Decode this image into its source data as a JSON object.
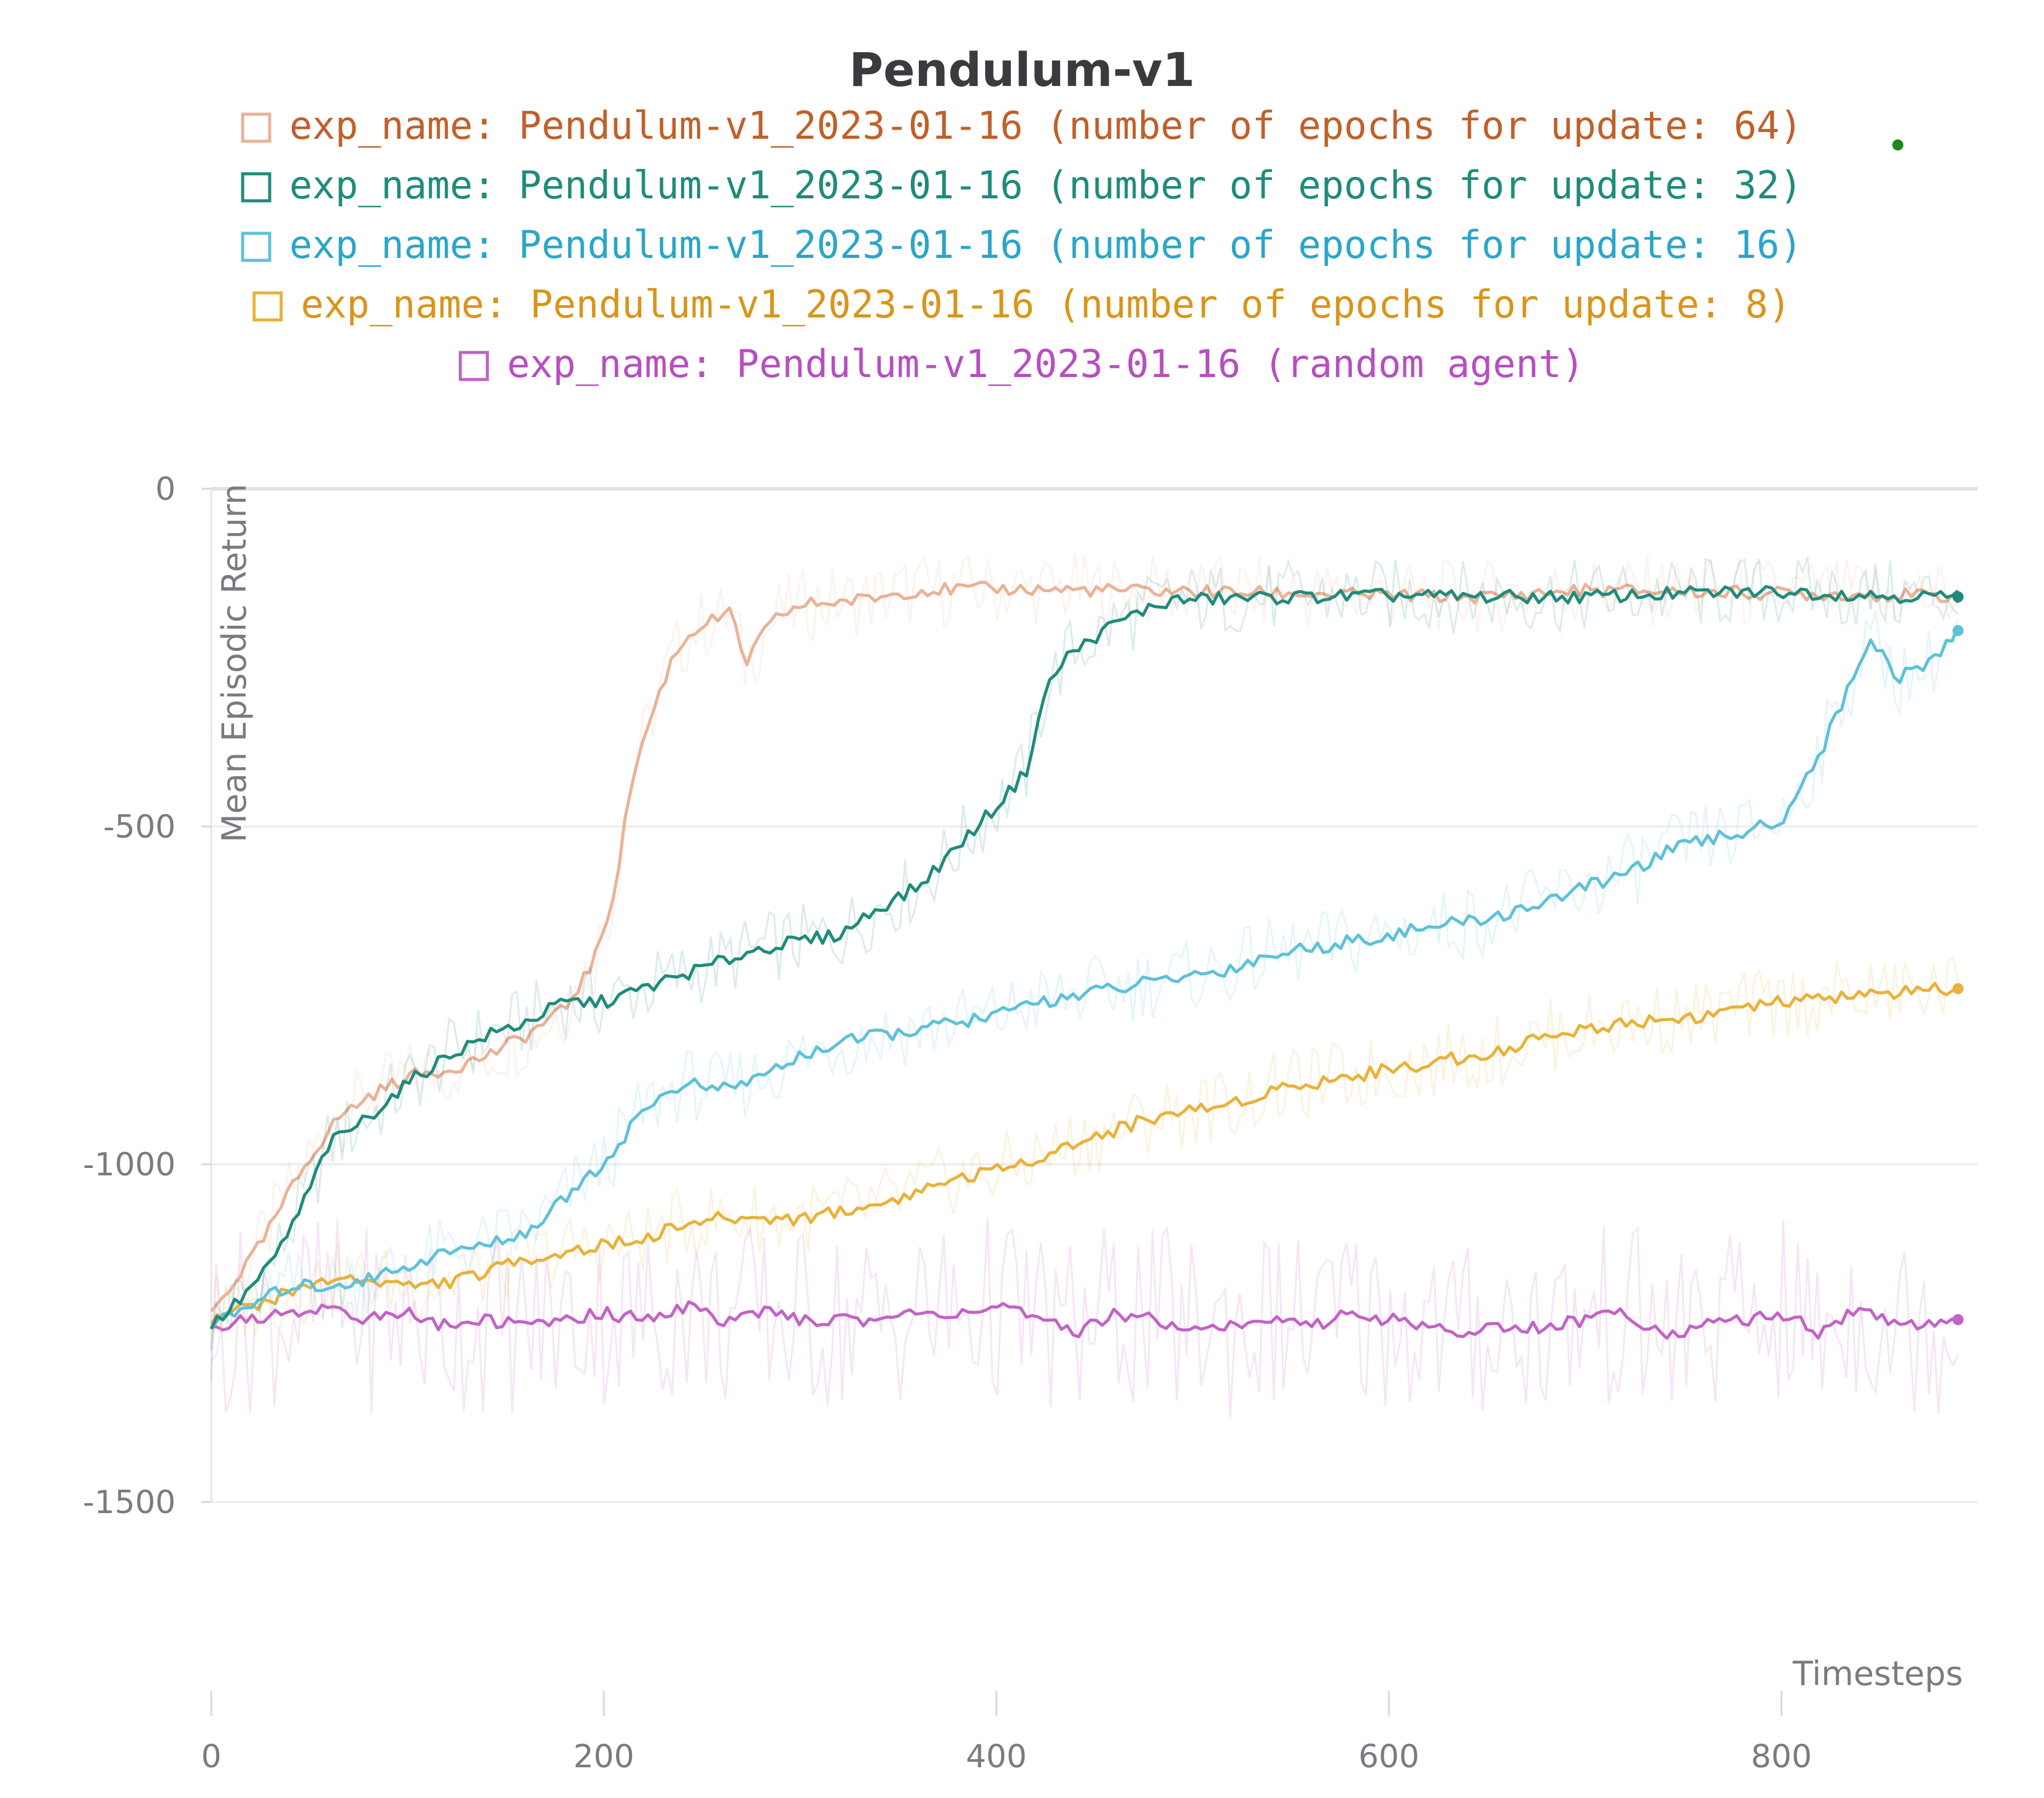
{
  "chart_data": {
    "type": "line",
    "title": "Pendulum-v1",
    "xlabel": "Timesteps",
    "ylabel": "Mean Episodic Return",
    "xlim": [
      0,
      900
    ],
    "ylim": [
      -1500,
      0
    ],
    "x_ticks": [
      "0",
      "200",
      "400",
      "600",
      "800"
    ],
    "y_ticks": [
      "0",
      "-500",
      "-1000",
      "-1500"
    ],
    "grid": true,
    "legend_position": "top-center",
    "series": [
      {
        "name": "exp_name: Pendulum-v1_2023-01-16 (number of epochs for update: 64)",
        "color": "#eab296",
        "legend_text_color": "#c0602a",
        "x": [
          0,
          10,
          25,
          40,
          50,
          65,
          80,
          100,
          120,
          140,
          160,
          180,
          195,
          205,
          215,
          225,
          235,
          245,
          255,
          265,
          272,
          280,
          290,
          305,
          330,
          360,
          400,
          450,
          500,
          550,
          600,
          650,
          700,
          750,
          800,
          850,
          890
        ],
        "values": [
          -1220,
          -1180,
          -1120,
          -1040,
          -990,
          -930,
          -900,
          -870,
          -860,
          -840,
          -810,
          -770,
          -700,
          -600,
          -420,
          -330,
          -250,
          -210,
          -195,
          -185,
          -260,
          -220,
          -185,
          -170,
          -165,
          -150,
          -148,
          -150,
          -152,
          -155,
          -158,
          -160,
          -150,
          -152,
          -155,
          -157,
          -160
        ]
      },
      {
        "name": "exp_name: Pendulum-v1_2023-01-16 (number of epochs for update: 32)",
        "color": "#1f8b7b",
        "legend_text_color": "#1f8b7b",
        "x": [
          0,
          15,
          30,
          45,
          60,
          80,
          100,
          120,
          140,
          160,
          180,
          200,
          220,
          240,
          260,
          280,
          300,
          320,
          340,
          360,
          380,
          400,
          415,
          425,
          435,
          445,
          460,
          475,
          490,
          520,
          560,
          600,
          650,
          700,
          750,
          800,
          850,
          890
        ],
        "values": [
          -1240,
          -1200,
          -1150,
          -1070,
          -970,
          -930,
          -880,
          -840,
          -810,
          -790,
          -760,
          -760,
          -740,
          -720,
          -700,
          -680,
          -670,
          -660,
          -620,
          -590,
          -530,
          -470,
          -420,
          -300,
          -250,
          -230,
          -200,
          -180,
          -165,
          -162,
          -160,
          -158,
          -160,
          -160,
          -155,
          -152,
          -158,
          -160
        ]
      },
      {
        "name": "exp_name: Pendulum-v1_2023-01-16 (number of epochs for update: 16)",
        "color": "#5ec1d8",
        "legend_text_color": "#2aa6c8",
        "x": [
          0,
          20,
          40,
          60,
          80,
          100,
          120,
          140,
          160,
          170,
          180,
          190,
          200,
          210,
          220,
          240,
          260,
          280,
          300,
          320,
          340,
          360,
          380,
          400,
          420,
          440,
          460,
          480,
          500,
          520,
          540,
          560,
          580,
          600,
          620,
          640,
          660,
          680,
          700,
          720,
          740,
          760,
          780,
          800,
          820,
          835,
          845,
          860,
          875,
          890
        ],
        "values": [
          -1240,
          -1210,
          -1180,
          -1180,
          -1170,
          -1150,
          -1130,
          -1120,
          -1100,
          -1080,
          -1050,
          -1020,
          -1000,
          -960,
          -920,
          -880,
          -890,
          -870,
          -840,
          -820,
          -810,
          -800,
          -790,
          -780,
          -760,
          -750,
          -740,
          -730,
          -720,
          -710,
          -690,
          -680,
          -670,
          -660,
          -650,
          -640,
          -630,
          -610,
          -590,
          -570,
          -540,
          -520,
          -510,
          -490,
          -390,
          -290,
          -220,
          -280,
          -260,
          -210
        ]
      },
      {
        "name": "exp_name: Pendulum-v1_2023-01-16 (number of epochs for update: 8)",
        "color": "#e8b23a",
        "legend_text_color": "#d9951a",
        "x": [
          0,
          20,
          40,
          60,
          80,
          100,
          120,
          140,
          160,
          180,
          200,
          220,
          240,
          260,
          280,
          300,
          320,
          340,
          360,
          380,
          400,
          420,
          440,
          460,
          480,
          500,
          520,
          540,
          560,
          580,
          600,
          620,
          640,
          660,
          680,
          700,
          720,
          740,
          760,
          780,
          800,
          820,
          840,
          860,
          890
        ],
        "values": [
          -1230,
          -1210,
          -1190,
          -1170,
          -1170,
          -1180,
          -1175,
          -1160,
          -1140,
          -1130,
          -1120,
          -1110,
          -1090,
          -1080,
          -1080,
          -1080,
          -1070,
          -1060,
          -1040,
          -1020,
          -1010,
          -990,
          -970,
          -950,
          -930,
          -920,
          -910,
          -890,
          -880,
          -870,
          -860,
          -850,
          -840,
          -830,
          -810,
          -800,
          -790,
          -785,
          -780,
          -770,
          -760,
          -755,
          -750,
          -745,
          -740
        ]
      },
      {
        "name": "exp_name: Pendulum-v1_2023-01-16 (random agent)",
        "color": "#c263c6",
        "legend_text_color": "#b64fc0",
        "x": [
          0,
          20,
          40,
          60,
          80,
          100,
          120,
          140,
          160,
          180,
          200,
          220,
          240,
          260,
          280,
          300,
          320,
          340,
          360,
          380,
          400,
          420,
          440,
          460,
          480,
          500,
          520,
          540,
          560,
          580,
          600,
          620,
          640,
          660,
          680,
          700,
          720,
          740,
          760,
          780,
          800,
          820,
          840,
          860,
          890
        ],
        "values": [
          -1240,
          -1230,
          -1220,
          -1210,
          -1230,
          -1220,
          -1240,
          -1230,
          -1240,
          -1230,
          -1220,
          -1230,
          -1210,
          -1230,
          -1220,
          -1230,
          -1230,
          -1230,
          -1220,
          -1220,
          -1210,
          -1230,
          -1250,
          -1220,
          -1230,
          -1240,
          -1240,
          -1230,
          -1240,
          -1220,
          -1230,
          -1240,
          -1250,
          -1240,
          -1240,
          -1230,
          -1220,
          -1250,
          -1240,
          -1230,
          -1220,
          -1250,
          -1210,
          -1240,
          -1230
        ]
      }
    ]
  }
}
